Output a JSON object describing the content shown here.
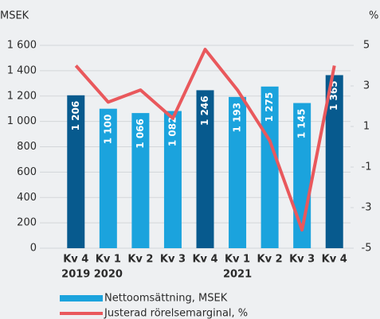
{
  "chart_data": {
    "type": "bar_line",
    "y_axis_title": "MSEK",
    "y2_axis_title": "%",
    "categories": [
      "Kv 4",
      "Kv 1",
      "Kv 2",
      "Kv 3",
      "Kv 4",
      "Kv 1",
      "Kv 2",
      "Kv 3",
      "Kv 4"
    ],
    "year_labels": [
      "2019",
      "2020",
      null,
      null,
      null,
      "2021",
      null,
      null,
      null
    ],
    "series": [
      {
        "name": "Nettoomsättning, MSEK",
        "type": "bar",
        "colors": [
          "#075a8e",
          "#1ba3dd",
          "#1ba3dd",
          "#1ba3dd",
          "#075a8e",
          "#1ba3dd",
          "#1ba3dd",
          "#1ba3dd",
          "#075a8e"
        ],
        "values": [
          1206,
          1100,
          1066,
          1082,
          1246,
          1193,
          1275,
          1145,
          1365
        ],
        "value_labels": [
          "1 206",
          "1 100",
          "1 066",
          "1 082",
          "1 246",
          "1 193",
          "1 275",
          "1 145",
          "1 365"
        ]
      },
      {
        "name": "Justerad rörelsemarginal, %",
        "type": "line",
        "axis": "y2",
        "color": "#e9585c",
        "values": [
          4.0,
          2.2,
          2.8,
          1.4,
          4.8,
          2.8,
          0.3,
          -4.1,
          4.0
        ]
      }
    ],
    "ylim": [
      0,
      1600
    ],
    "yticks": [
      0,
      200,
      400,
      600,
      800,
      {
        "value": 1000,
        "label": "1 000"
      },
      {
        "value": 1200,
        "label": "1 200"
      },
      {
        "value": 1400,
        "label": "1 400"
      },
      {
        "value": 1600,
        "label": "1 600"
      }
    ],
    "y2lim": [
      -5,
      5
    ],
    "y2ticks": [
      -5,
      -3,
      -1,
      1,
      3,
      5
    ],
    "grid": true
  }
}
